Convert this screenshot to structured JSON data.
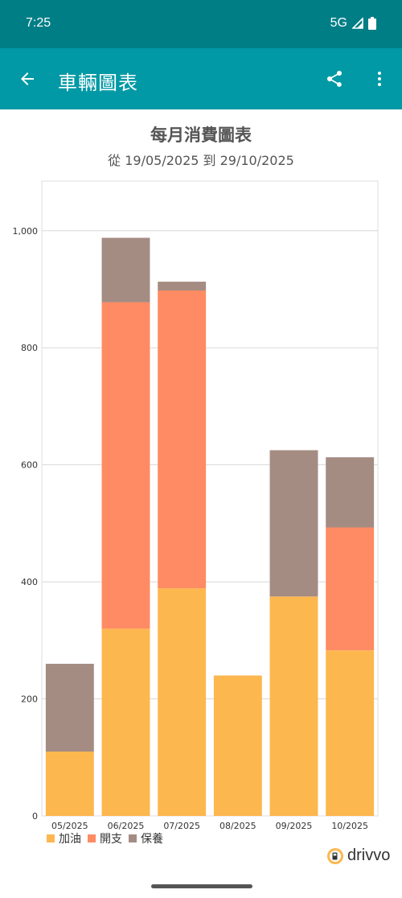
{
  "status_bar": {
    "time": "7:25",
    "network": "5G"
  },
  "app_bar": {
    "title": "車輛圖表",
    "back_icon": "arrow-left-icon",
    "share_icon": "share-icon",
    "more_icon": "more-vert-icon"
  },
  "chart_data": {
    "type": "bar",
    "stacked": true,
    "title": "每月消費圖表",
    "subtitle": "從 19/05/2025 到 29/10/2025",
    "categories": [
      "05/2025",
      "06/2025",
      "07/2025",
      "08/2025",
      "09/2025",
      "10/2025"
    ],
    "series": [
      {
        "name": "加油",
        "color": "#fdb74f",
        "values": [
          110,
          320,
          389,
          240,
          375,
          283
        ]
      },
      {
        "name": "開支",
        "color": "#fe8b63",
        "values": [
          0,
          558,
          509,
          0,
          0,
          210
        ]
      },
      {
        "name": "保養",
        "color": "#a48c83",
        "values": [
          150,
          110,
          15,
          0,
          250,
          120
        ]
      }
    ],
    "y_ticks": [
      "0",
      "200",
      "400",
      "600",
      "800",
      "1,000"
    ],
    "ylim": [
      0,
      1085
    ],
    "grid": true,
    "legend_position": "bottom-left"
  },
  "brand": {
    "name": "drivvo"
  }
}
